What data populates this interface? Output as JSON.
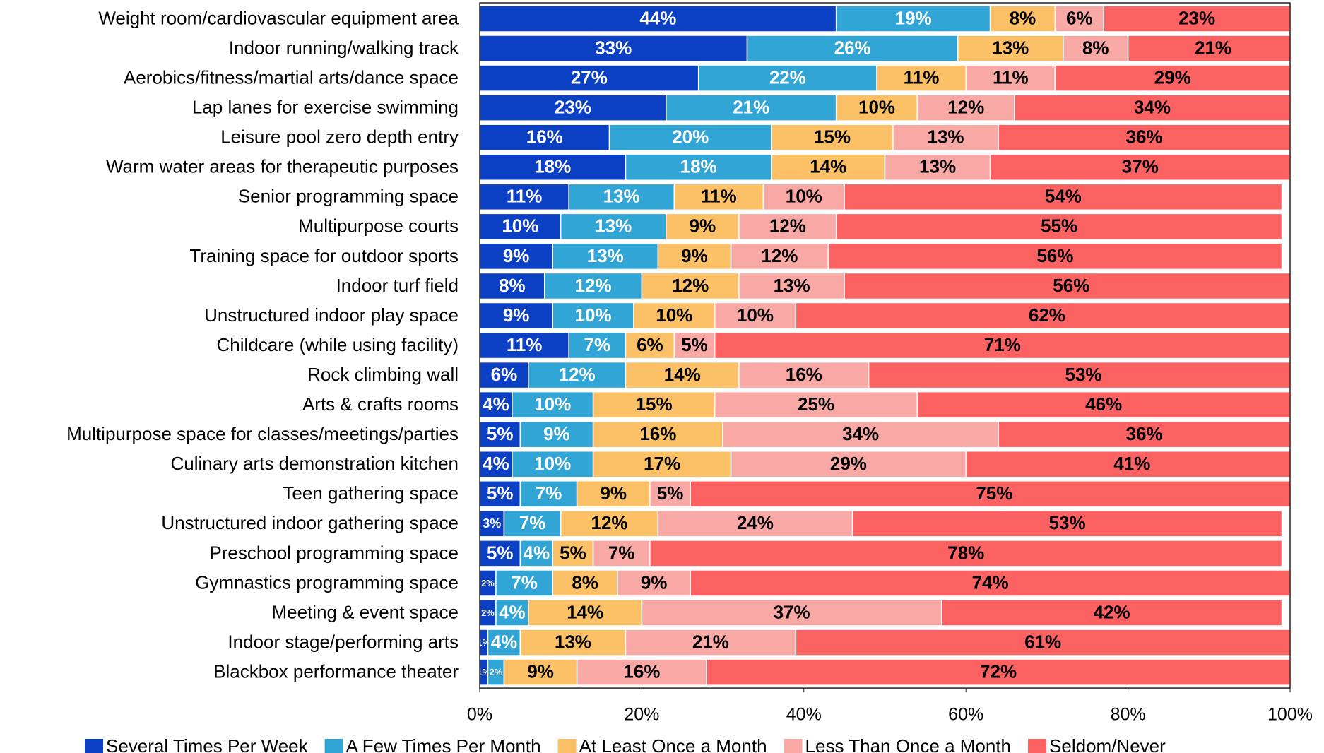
{
  "chart_data": {
    "type": "stacked-bar-horizontal",
    "categories": [
      "Weight room/cardiovascular equipment area",
      "Indoor running/walking track",
      "Aerobics/fitness/martial arts/dance space",
      "Lap lanes for exercise swimming",
      "Leisure pool zero depth entry",
      "Warm water areas for therapeutic purposes",
      "Senior programming space",
      "Multipurpose courts",
      "Training space for outdoor sports",
      "Indoor turf field",
      "Unstructured indoor play space",
      "Childcare (while using facility)",
      "Rock climbing wall",
      "Arts & crafts rooms",
      "Multipurpose space for classes/meetings/parties",
      "Culinary arts demonstration kitchen",
      "Teen gathering space",
      "Unstructured indoor gathering space",
      "Preschool programming space",
      "Gymnastics programming space",
      "Meeting & event space",
      "Indoor stage/performing arts",
      "Blackbox performance theater"
    ],
    "series": [
      {
        "name": "Several Times Per Week",
        "color": "#0b3fc4",
        "values": [
          44,
          33,
          27,
          23,
          16,
          18,
          11,
          10,
          9,
          8,
          9,
          11,
          6,
          4,
          5,
          4,
          5,
          3,
          5,
          2,
          2,
          1,
          1
        ],
        "value_labels": [
          "44%",
          "33%",
          "27%",
          "23%",
          "16%",
          "18%",
          "11%",
          "10%",
          "9%",
          "8%",
          "9%",
          "11%",
          "6%",
          "4%",
          "5%",
          "4%",
          "5%",
          "3%",
          "5%",
          "2%",
          "2%",
          "1%",
          "1%"
        ]
      },
      {
        "name": "A Few Times Per Month",
        "color": "#30a5d6",
        "values": [
          19,
          26,
          22,
          21,
          20,
          18,
          13,
          13,
          13,
          12,
          10,
          7,
          12,
          10,
          9,
          10,
          7,
          7,
          4,
          7,
          4,
          4,
          2
        ],
        "value_labels": [
          "19%",
          "26%",
          "22%",
          "21%",
          "20%",
          "18%",
          "13%",
          "13%",
          "13%",
          "12%",
          "10%",
          "7%",
          "12%",
          "10%",
          "9%",
          "10%",
          "7%",
          "7%",
          "4%",
          "7%",
          "4%",
          "4%",
          "2%"
        ]
      },
      {
        "name": "At Least Once a Month",
        "color": "#fcc066",
        "values": [
          8,
          13,
          11,
          10,
          15,
          14,
          11,
          9,
          9,
          12,
          10,
          6,
          14,
          15,
          16,
          17,
          9,
          12,
          5,
          8,
          14,
          13,
          9
        ],
        "value_labels": [
          "8%",
          "13%",
          "11%",
          "10%",
          "15%",
          "14%",
          "11%",
          "9%",
          "9%",
          "12%",
          "10%",
          "6%",
          "14%",
          "15%",
          "16%",
          "17%",
          "9%",
          "12%",
          "5%",
          "8%",
          "14%",
          "13%",
          "9%"
        ]
      },
      {
        "name": "Less Than Once a Month",
        "color": "#f9a9a5",
        "values": [
          6,
          8,
          11,
          12,
          13,
          13,
          10,
          12,
          12,
          13,
          10,
          5,
          16,
          25,
          34,
          29,
          5,
          24,
          7,
          9,
          37,
          21,
          16
        ],
        "value_labels": [
          "6%",
          "8%",
          "11%",
          "12%",
          "13%",
          "13%",
          "10%",
          "12%",
          "12%",
          "13%",
          "10%",
          "5%",
          "16%",
          "25%",
          "34%",
          "29%",
          "5%",
          "24%",
          "7%",
          "9%",
          "37%",
          "21%",
          "16%"
        ]
      },
      {
        "name": "Seldom/Never",
        "color": "#fd6262",
        "values": [
          23,
          21,
          29,
          34,
          36,
          37,
          54,
          55,
          56,
          56,
          62,
          71,
          53,
          46,
          36,
          41,
          75,
          53,
          78,
          74,
          42,
          61,
          72
        ],
        "value_labels": [
          "23%",
          "21%",
          "29%",
          "34%",
          "36%",
          "37%",
          "54%",
          "55%",
          "56%",
          "56%",
          "62%",
          "71%",
          "53%",
          "46%",
          "36%",
          "41%",
          "75%",
          "53%",
          "78%",
          "74%",
          "42%",
          "61%",
          "72%"
        ]
      }
    ],
    "xlim": [
      0,
      100
    ],
    "xticks": [
      {
        "value": 0,
        "label": "0%"
      },
      {
        "value": 20,
        "label": "20%"
      },
      {
        "value": 40,
        "label": "40%"
      },
      {
        "value": 60,
        "label": "60%"
      },
      {
        "value": 80,
        "label": "80%"
      },
      {
        "value": 100,
        "label": "100%"
      }
    ],
    "legend": "bottom"
  }
}
